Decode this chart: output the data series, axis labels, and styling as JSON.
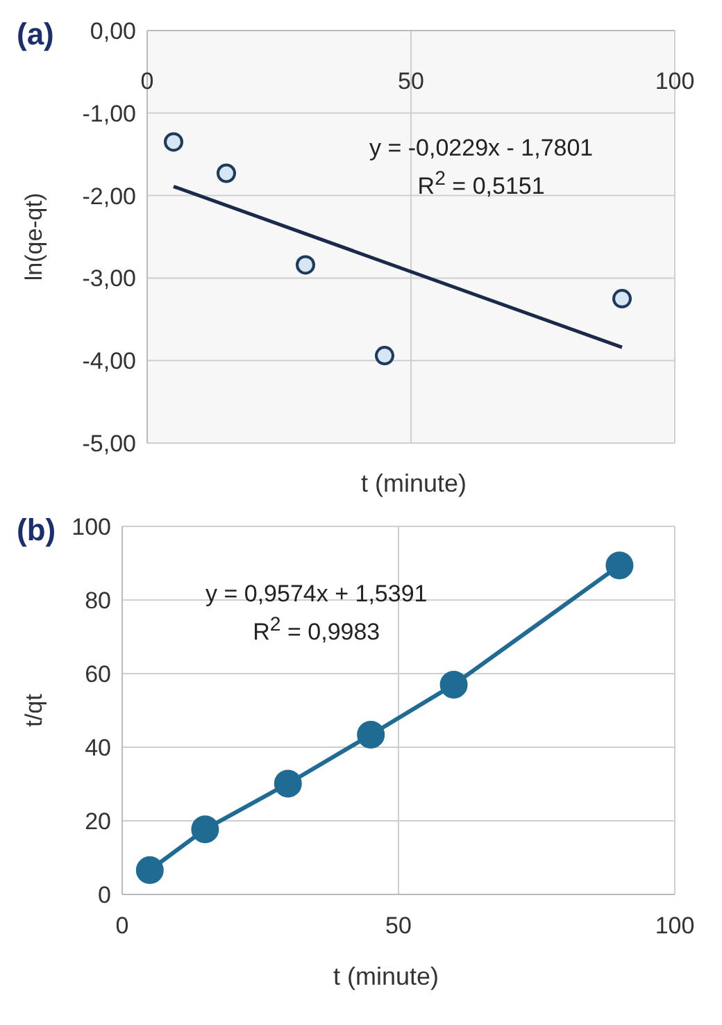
{
  "chart_data": [
    {
      "type": "scatter",
      "title": "(a)",
      "xlabel": "t (minute)",
      "ylabel": "ln(qe-qt)",
      "xlim": [
        0,
        100
      ],
      "xticks": [
        0,
        50,
        100
      ],
      "ylim": [
        -5,
        0
      ],
      "yticks": [
        {
          "value": -5,
          "label": "-5,00"
        },
        {
          "value": -4,
          "label": "-4,00"
        },
        {
          "value": -3,
          "label": "-3,00"
        },
        {
          "value": -2,
          "label": "-2,00"
        },
        {
          "value": -1,
          "label": "-1,00"
        },
        {
          "value": 0,
          "label": "0,00"
        }
      ],
      "grid": true,
      "series": [
        {
          "marker": "circle",
          "color": "#1f3a5a",
          "x": [
            5,
            15,
            30,
            45,
            90
          ],
          "values": [
            -1.35,
            -1.73,
            -2.84,
            -3.94,
            -3.25
          ]
        },
        {
          "type": "line",
          "marker": "none",
          "color": "#1b2a4a",
          "x": [
            5,
            90
          ],
          "values": [
            -1.89,
            -3.84
          ]
        }
      ],
      "annotations": [
        "y = -0,0229x - 1,7801",
        "R$^{2}$ = 0,5151"
      ]
    },
    {
      "type": "line",
      "title": "(b)",
      "xlabel": "t (minute)",
      "ylabel": "t/qt",
      "xlim": [
        0,
        100
      ],
      "xticks": [
        0,
        50,
        100
      ],
      "ylim": [
        0,
        100
      ],
      "yticks": [
        0,
        20,
        40,
        60,
        80,
        100
      ],
      "grid": true,
      "series": [
        {
          "marker": "circle",
          "color": "#1f6b94",
          "x": [
            5,
            15,
            30,
            45,
            60,
            90
          ],
          "values": [
            6.6,
            17.7,
            30.1,
            43.4,
            57,
            89.4
          ]
        }
      ],
      "annotations": [
        "y = 0,9574x + 1,5391",
        "R$^{2}$ = 0,9983"
      ]
    }
  ]
}
